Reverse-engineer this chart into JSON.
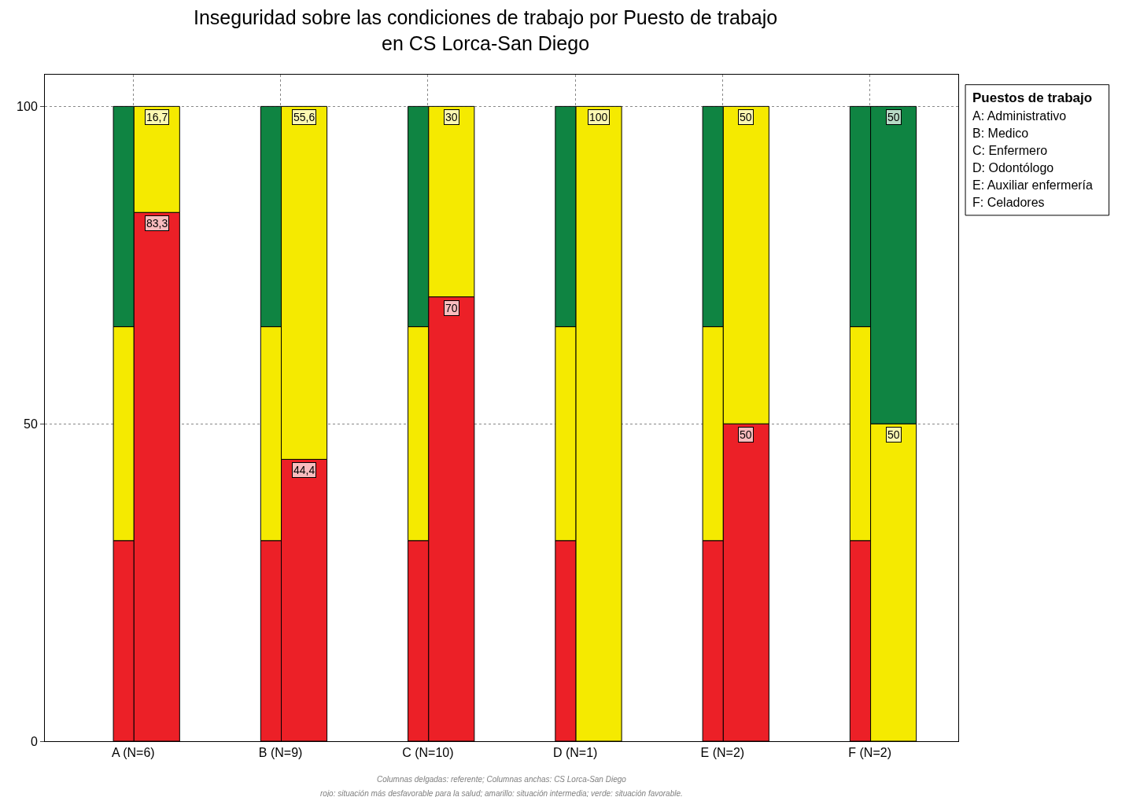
{
  "chart_data": {
    "type": "bar",
    "title": "Inseguridad sobre las condiciones de trabajo por Puesto de trabajo\nen CS Lorca-San Diego",
    "categories": [
      "A (N=6)",
      "B (N=9)",
      "C (N=10)",
      "D (N=1)",
      "E (N=2)",
      "F (N=2)"
    ],
    "series": [
      {
        "color": "#ec2027",
        "values": [
          31.6,
          31.6,
          31.6,
          31.6,
          31.6,
          31.6
        ],
        "base": [
          0,
          0,
          0,
          0,
          0,
          0
        ]
      },
      {
        "color": "#f5ea00",
        "values": [
          33.7,
          33.7,
          33.7,
          33.7,
          33.7,
          33.7
        ],
        "base": [
          31.6,
          31.6,
          31.6,
          31.6,
          31.6,
          31.6
        ]
      },
      {
        "color": "#0f8442",
        "values": [
          34.7,
          34.7,
          34.7,
          34.7,
          34.7,
          34.7
        ],
        "base": [
          65.3,
          65.3,
          65.3,
          65.3,
          65.3,
          65.3
        ]
      },
      {
        "color": "#ec2027",
        "values": [
          83.3,
          44.4,
          70,
          null,
          50,
          null
        ],
        "base": [
          0,
          0,
          0,
          null,
          0,
          null
        ],
        "value_labels": [
          "83,3",
          "44,4",
          "70",
          null,
          "50",
          null
        ]
      },
      {
        "color": "#f5ea00",
        "values": [
          16.7,
          55.6,
          30,
          100,
          50,
          50
        ],
        "base": [
          83.3,
          44.4,
          70,
          0,
          50,
          0
        ],
        "value_labels": [
          "16,7",
          "55,6",
          "30",
          "100",
          "50",
          "50"
        ]
      },
      {
        "color": "#0f8442",
        "values": [
          null,
          null,
          null,
          null,
          null,
          50
        ],
        "base": [
          null,
          null,
          null,
          null,
          null,
          50
        ],
        "value_labels": [
          null,
          null,
          null,
          null,
          null,
          "50"
        ]
      }
    ],
    "ylim": [
      0,
      105
    ],
    "yticks": [
      0,
      50,
      100
    ],
    "grid": true,
    "annotations": [
      "Puestos de trabajo",
      "A: Administrativo",
      "B: Medico",
      "C: Enfermero",
      "D: Odontólogo",
      "E: Auxiliar enfermería",
      "F: Celadores",
      "Columnas delgadas: referente; Columnas anchas: CS Lorca-San Diego",
      "rojo: situación más desfavorable para la salud; amarillo: situación intermedia; verde: situación favorable."
    ]
  }
}
